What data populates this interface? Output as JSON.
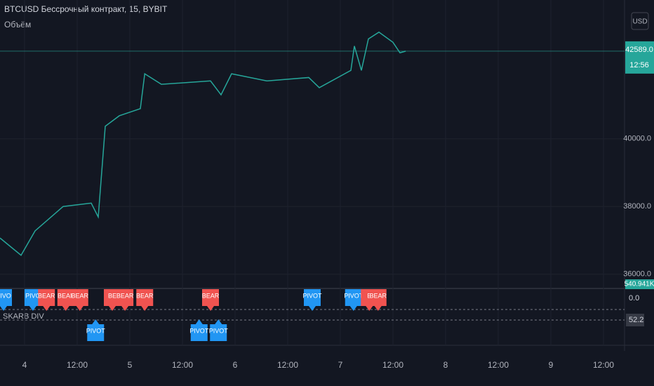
{
  "chart_data": {
    "type": "line",
    "title": "BTCUSD Бессрочный контракт, 15, BYBIT",
    "volume_label": "Объём",
    "currency": "USD",
    "x": [
      -5.6,
      -0.8,
      2.4,
      8.8,
      15.2,
      16.8,
      18.4,
      21.6,
      26.4,
      27.4,
      31.2,
      42.4,
      44.8,
      47.2,
      55.2,
      64.8,
      67.2,
      74.4,
      75.2,
      76.8,
      78.4,
      80.8,
      84,
      85.6,
      86.9
    ],
    "series": [
      {
        "name": "BTCUSD",
        "color": "#26a69a",
        "values": [
          37070,
          36560,
          37280,
          38000,
          38100,
          37690,
          40370,
          40680,
          40890,
          41920,
          41610,
          41710,
          41300,
          41920,
          41710,
          41810,
          41510,
          42020,
          42740,
          42020,
          42950,
          43150,
          42850,
          42540,
          42589
        ]
      }
    ],
    "xlim": [
      -5.6,
      136.8
    ],
    "xticks": [
      {
        "value": 0,
        "label": "4"
      },
      {
        "value": 12,
        "label": "12:00"
      },
      {
        "value": 24,
        "label": "5"
      },
      {
        "value": 36,
        "label": "12:00"
      },
      {
        "value": 48,
        "label": "6"
      },
      {
        "value": 60,
        "label": "12:00"
      },
      {
        "value": 72,
        "label": "7"
      },
      {
        "value": 84,
        "label": "12:00"
      },
      {
        "value": 96,
        "label": "8"
      },
      {
        "value": 108,
        "label": "12:00"
      },
      {
        "value": 120,
        "label": "9"
      },
      {
        "value": 132,
        "label": "12:00"
      }
    ],
    "ylim": [
      35600,
      44100
    ],
    "yticks": [
      {
        "value": 36000,
        "label": "36000.0"
      },
      {
        "value": 38000,
        "label": "38000.0"
      },
      {
        "value": 40000,
        "label": "40000.0"
      }
    ],
    "grid": true,
    "last_price": {
      "value": 42589,
      "label": "42589.0"
    },
    "countdown": "12:56",
    "volume_value": "540.941K",
    "indicator": {
      "name": "SKARB DIV",
      "levels": [
        {
          "value": 0,
          "label": "0.0"
        },
        {
          "value": 52.2,
          "label": "52.2"
        }
      ]
    },
    "signals": [
      {
        "label": "PIVO",
        "x": -4.8,
        "color": "#2196f3",
        "position": "above"
      },
      {
        "label": "PIVO",
        "x": 1.9,
        "color": "#2196f3",
        "position": "above"
      },
      {
        "label": "BEAR",
        "x": 5,
        "color": "#f05350",
        "position": "above"
      },
      {
        "label": "BEAF",
        "x": 9.4,
        "color": "#f05350",
        "position": "above"
      },
      {
        "label": "BEAR",
        "x": 12.6,
        "color": "#f05350",
        "position": "above"
      },
      {
        "label": "PIVOT",
        "x": 16.2,
        "color": "#2196f3",
        "position": "below"
      },
      {
        "label": "BE",
        "x": 20,
        "color": "#f05350",
        "position": "above"
      },
      {
        "label": "BEAR",
        "x": 22.9,
        "color": "#f05350",
        "position": "above"
      },
      {
        "label": "BEAR",
        "x": 27.4,
        "color": "#f05350",
        "position": "above"
      },
      {
        "label": "PIVOT",
        "x": 39.8,
        "color": "#2196f3",
        "position": "below"
      },
      {
        "label": "BEAR",
        "x": 42.4,
        "color": "#f05350",
        "position": "above"
      },
      {
        "label": "PIVOT",
        "x": 44.2,
        "color": "#2196f3",
        "position": "below"
      },
      {
        "label": "PIVOT",
        "x": 65.6,
        "color": "#2196f3",
        "position": "above"
      },
      {
        "label": "PIVOT",
        "x": 75,
        "color": "#2196f3",
        "position": "above"
      },
      {
        "label": "E",
        "x": 78.6,
        "color": "#f05350",
        "position": "above"
      },
      {
        "label": "BEAR",
        "x": 80.6,
        "color": "#f05350",
        "position": "above"
      }
    ]
  }
}
